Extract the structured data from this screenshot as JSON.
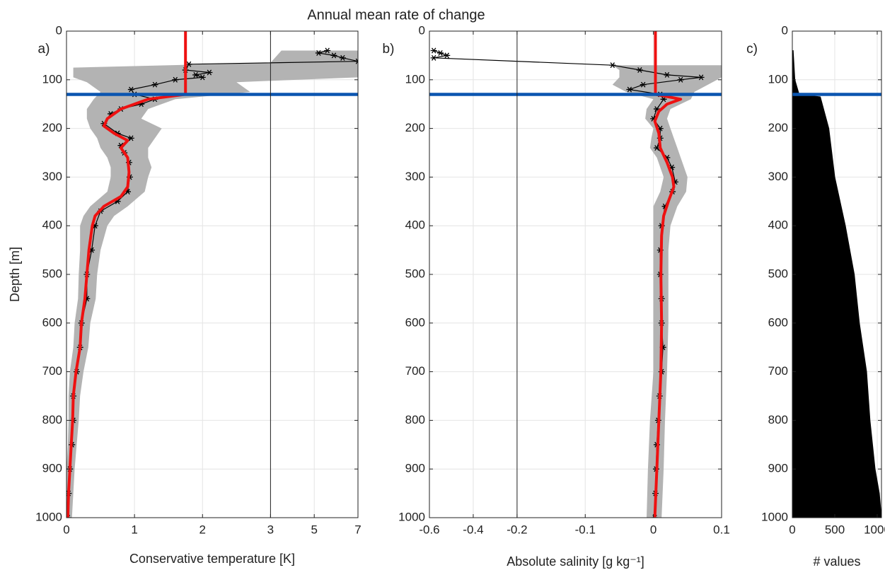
{
  "title": "Annual mean rate of change",
  "chart_data": [
    {
      "type": "profile",
      "label": "a)",
      "ylabel": "Depth [m]",
      "xlabel": "Conservative temperature [K]",
      "xlim": [
        0,
        7
      ],
      "xbreak": {
        "value": 3,
        "compressed": "right"
      },
      "xticks": [
        0,
        1,
        2,
        3,
        5,
        7
      ],
      "ylim": [
        0,
        1000
      ],
      "y_reversed": true,
      "yticks": [
        0,
        100,
        200,
        300,
        400,
        500,
        600,
        700,
        800,
        900,
        1000
      ],
      "grid": true,
      "band": {
        "color": "#b3b3b3",
        "depth": [
          40,
          65,
          75,
          95,
          105,
          125,
          140,
          160,
          180,
          200,
          220,
          240,
          260,
          280,
          300,
          330,
          360,
          380,
          400,
          450,
          500,
          550,
          600,
          650,
          700,
          750,
          800,
          850,
          900,
          950,
          1000
        ],
        "lower": [
          3.5,
          3.0,
          0.1,
          0.1,
          0.3,
          0.5,
          0.4,
          0.3,
          0.3,
          0.35,
          0.45,
          0.5,
          0.6,
          0.65,
          0.65,
          0.6,
          0.35,
          0.25,
          0.2,
          0.2,
          0.18,
          0.17,
          0.12,
          0.1,
          0.05,
          0.03,
          0.03,
          0.02,
          0,
          -0.02,
          -0.02
        ],
        "upper": [
          7,
          7,
          7,
          7,
          2.5,
          2.7,
          1.6,
          1.2,
          1.1,
          1.4,
          1.3,
          1.2,
          1.2,
          1.25,
          1.2,
          1.15,
          0.9,
          0.7,
          0.6,
          0.5,
          0.45,
          0.43,
          0.35,
          0.32,
          0.25,
          0.2,
          0.18,
          0.15,
          0.12,
          0.1,
          0.08
        ]
      },
      "series": [
        {
          "color": "#000000",
          "marker": "star",
          "depth": [
            40,
            45,
            50,
            55,
            62,
            68,
            80,
            85,
            90,
            95,
            100,
            110,
            120,
            130,
            140,
            150,
            160,
            170,
            190,
            210,
            220,
            235,
            250,
            270,
            300,
            330,
            350,
            370,
            400,
            450,
            500,
            550,
            600,
            650,
            700,
            750,
            800,
            850,
            900,
            950,
            1000
          ],
          "values": [
            5.6,
            5.2,
            5.9,
            6.3,
            7,
            1.8,
            1.75,
            2.1,
            1.9,
            2.0,
            1.6,
            1.3,
            0.95,
            1.0,
            1.3,
            1.1,
            0.8,
            0.65,
            0.55,
            0.75,
            0.95,
            0.8,
            0.85,
            0.92,
            0.93,
            0.9,
            0.75,
            0.5,
            0.42,
            0.37,
            0.3,
            0.3,
            0.22,
            0.2,
            0.15,
            0.1,
            0.1,
            0.08,
            0.05,
            0.03,
            0.02
          ]
        },
        {
          "color": "#ee1111",
          "depth": [
            0,
            130,
            140,
            160,
            180,
            195,
            210,
            225,
            240,
            260,
            290,
            320,
            340,
            360,
            380,
            400,
            450,
            500,
            550,
            600,
            650,
            700,
            750,
            800,
            850,
            900,
            950,
            1000
          ],
          "values": [
            1.75,
            1.75,
            1.2,
            0.8,
            0.6,
            0.55,
            0.7,
            0.9,
            0.8,
            0.9,
            0.92,
            0.9,
            0.8,
            0.55,
            0.42,
            0.38,
            0.33,
            0.3,
            0.27,
            0.22,
            0.2,
            0.14,
            0.1,
            0.09,
            0.07,
            0.05,
            0.03,
            0.02
          ]
        }
      ],
      "hline": {
        "value": 130,
        "color": "#0b55b0"
      }
    },
    {
      "type": "profile",
      "label": "b)",
      "xlabel": "Absolute salinity [g kg⁻¹]",
      "xlim": [
        -0.6,
        0.1
      ],
      "xbreak": {
        "value": -0.2,
        "compressed": "left"
      },
      "xticks": [
        -0.6,
        -0.4,
        -0.2,
        -0.1,
        0,
        0.1
      ],
      "ylim": [
        0,
        1000
      ],
      "y_reversed": true,
      "yticks": [
        0,
        100,
        200,
        300,
        400,
        500,
        600,
        700,
        800,
        900,
        1000
      ],
      "grid": true,
      "band": {
        "color": "#b3b3b3",
        "depth": [
          70,
          80,
          95,
          110,
          125,
          140,
          160,
          180,
          200,
          220,
          240,
          260,
          280,
          300,
          330,
          360,
          400,
          450,
          500,
          600,
          700,
          800,
          900,
          1000
        ],
        "lower": [
          -0.06,
          -0.05,
          -0.05,
          -0.06,
          -0.04,
          0.0,
          -0.01,
          -0.012,
          0,
          -0.003,
          -0.005,
          0.005,
          0.01,
          0.015,
          0.01,
          0.0,
          0.0,
          0.0,
          0.0,
          0.0,
          0.0,
          -0.005,
          -0.008,
          -0.01
        ],
        "upper": [
          0.1,
          0.1,
          0.1,
          0.08,
          0.06,
          0.055,
          0.025,
          0.02,
          0.025,
          0.03,
          0.035,
          0.04,
          0.045,
          0.05,
          0.048,
          0.035,
          0.025,
          0.022,
          0.022,
          0.022,
          0.02,
          0.017,
          0.015,
          0.012
        ]
      },
      "series": [
        {
          "color": "#000000",
          "marker": "star",
          "depth": [
            40,
            45,
            50,
            55,
            70,
            80,
            90,
            95,
            100,
            110,
            120,
            130,
            140,
            160,
            180,
            200,
            220,
            240,
            260,
            280,
            310,
            330,
            360,
            400,
            450,
            500,
            550,
            600,
            650,
            700,
            750,
            800,
            850,
            900,
            950,
            1000
          ],
          "values": [
            -0.58,
            -0.55,
            -0.52,
            -0.58,
            -0.06,
            -0.02,
            0.02,
            0.07,
            0.04,
            -0.015,
            -0.035,
            0.01,
            0.015,
            0.005,
            0,
            0.01,
            0.01,
            0.005,
            0.02,
            0.027,
            0.032,
            0.028,
            0.017,
            0.012,
            0.01,
            0.01,
            0.012,
            0.012,
            0.014,
            0.012,
            0.009,
            0.007,
            0.005,
            0.004,
            0.003,
            0.002
          ]
        },
        {
          "color": "#ee1111",
          "depth": [
            0,
            130,
            140,
            150,
            165,
            185,
            210,
            240,
            270,
            300,
            320,
            350,
            380,
            420,
            500,
            600,
            700,
            800,
            900,
            1000
          ],
          "values": [
            0.003,
            0.003,
            0.04,
            0.02,
            0.008,
            0.002,
            0.008,
            0.01,
            0.02,
            0.028,
            0.03,
            0.022,
            0.015,
            0.012,
            0.011,
            0.012,
            0.011,
            0.008,
            0.005,
            0.002
          ]
        }
      ],
      "hline": {
        "value": 130,
        "color": "#0b55b0"
      }
    },
    {
      "type": "area",
      "label": "c)",
      "xlabel": "# values",
      "xlim": [
        0,
        1050
      ],
      "xticks": [
        0,
        500,
        1000
      ],
      "ylim": [
        0,
        1000
      ],
      "y_reversed": true,
      "yticks": [
        0,
        100,
        200,
        300,
        400,
        500,
        600,
        700,
        800,
        900,
        1000
      ],
      "grid": true,
      "color": "#000000",
      "depth": [
        40,
        100,
        130,
        135,
        200,
        300,
        400,
        500,
        600,
        700,
        800,
        900,
        950,
        1000
      ],
      "values": [
        10,
        30,
        80,
        330,
        430,
        500,
        625,
        730,
        790,
        875,
        915,
        975,
        1025,
        1050
      ],
      "hline": {
        "value": 130,
        "color": "#0b55b0"
      }
    }
  ]
}
